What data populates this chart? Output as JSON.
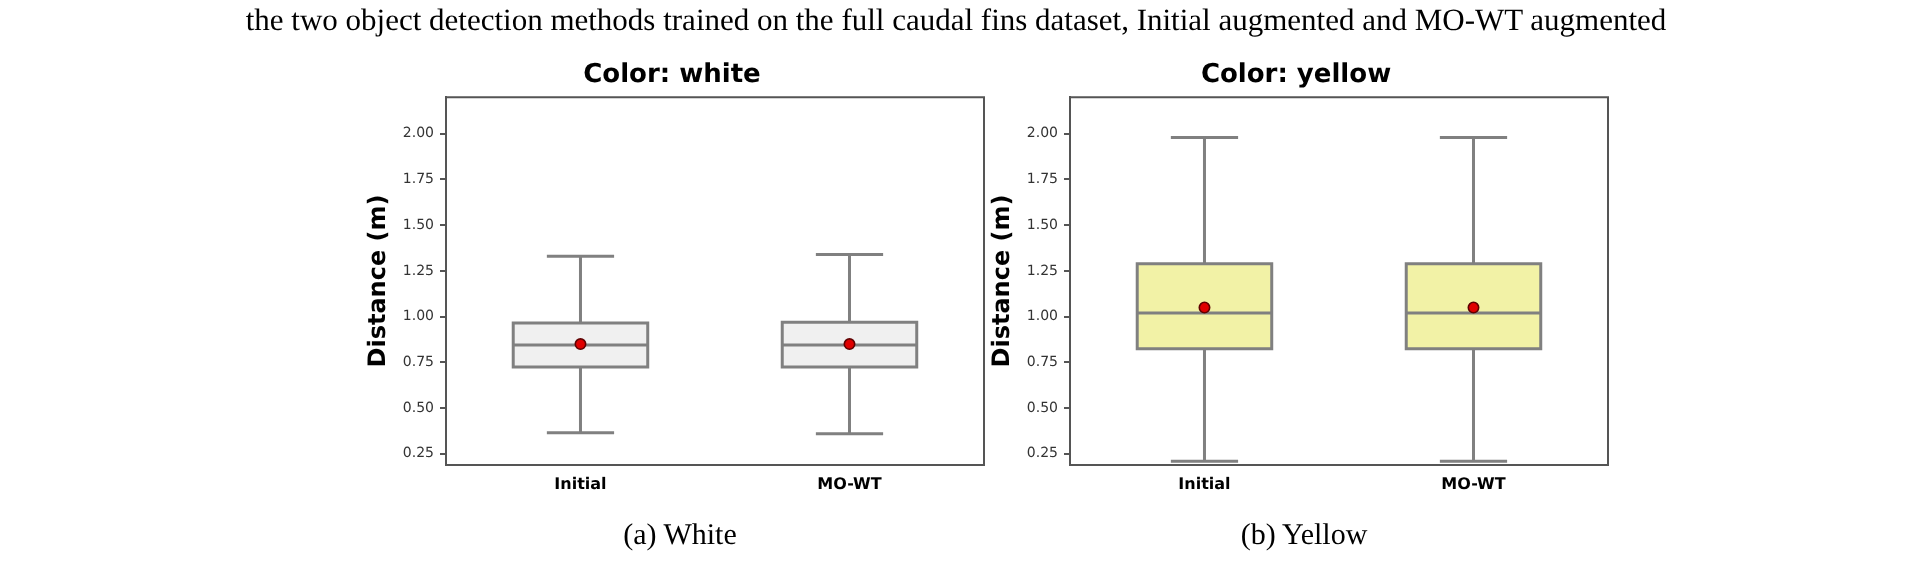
{
  "chart_data": [
    {
      "type": "box",
      "title": "Color: white",
      "ylabel": "Distance (m)",
      "categories": [
        "Initial",
        "MO-WT"
      ],
      "color": "#f0f0f0",
      "boxes": [
        {
          "low": 0.365,
          "q1": 0.725,
          "median": 0.845,
          "q3": 0.965,
          "high": 1.33,
          "mean": 0.85
        },
        {
          "low": 0.36,
          "q1": 0.725,
          "median": 0.845,
          "q3": 0.97,
          "high": 1.34,
          "mean": 0.85
        }
      ],
      "ylim": [
        0.19,
        2.2
      ],
      "yticks": [
        {
          "value": 0.25,
          "label": "0.25"
        },
        {
          "value": 0.5,
          "label": "0.50"
        },
        {
          "value": 0.75,
          "label": "0.75"
        },
        {
          "value": 1,
          "label": "1.00"
        },
        {
          "value": 1.25,
          "label": "1.25"
        },
        {
          "value": 1.5,
          "label": "1.50"
        },
        {
          "value": 1.75,
          "label": "1.75"
        },
        {
          "value": 2,
          "label": "2.00"
        }
      ],
      "grid": false,
      "legend": false,
      "annotations": [
        "the two object detection methods trained on the full caudal fins dataset, Initial augmented and MO-WT augmented",
        "(a) White"
      ]
    },
    {
      "type": "box",
      "title": "Color: yellow",
      "ylabel": "Distance (m)",
      "categories": [
        "Initial",
        "MO-WT"
      ],
      "color": "#f2f2a6",
      "boxes": [
        {
          "low": 0.21,
          "q1": 0.825,
          "median": 1.02,
          "q3": 1.29,
          "high": 1.98,
          "mean": 1.05
        },
        {
          "low": 0.21,
          "q1": 0.825,
          "median": 1.02,
          "q3": 1.29,
          "high": 1.98,
          "mean": 1.05
        }
      ],
      "ylim": [
        0.19,
        2.2
      ],
      "yticks": [
        {
          "value": 0.25,
          "label": "0.25"
        },
        {
          "value": 0.5,
          "label": "0.50"
        },
        {
          "value": 0.75,
          "label": "0.75"
        },
        {
          "value": 1,
          "label": "1.00"
        },
        {
          "value": 1.25,
          "label": "1.25"
        },
        {
          "value": 1.5,
          "label": "1.50"
        },
        {
          "value": 1.75,
          "label": "1.75"
        },
        {
          "value": 2,
          "label": "2.00"
        }
      ],
      "grid": false,
      "legend": false,
      "annotations": [
        "(b) Yellow"
      ]
    }
  ]
}
